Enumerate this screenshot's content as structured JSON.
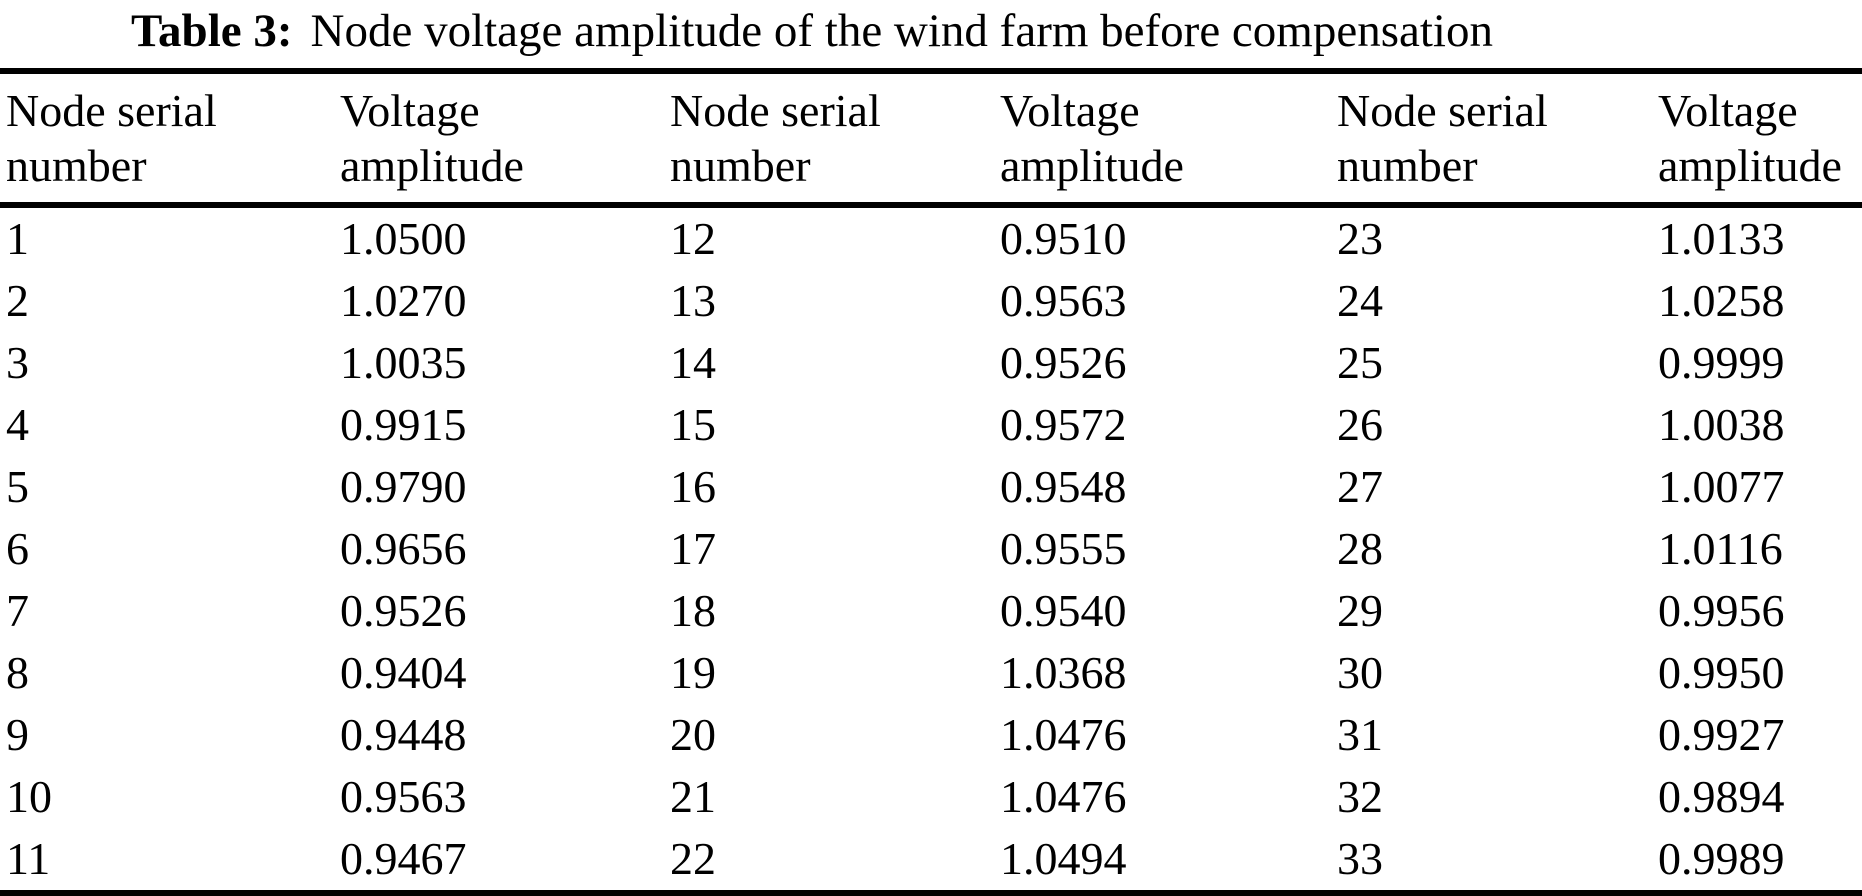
{
  "document": {
    "title": {
      "label": "Table 3:",
      "text": "Node voltage amplitude of the wind farm before compensation"
    },
    "table": {
      "column_headers": [
        {
          "line1": "Node serial",
          "line2": "number"
        },
        {
          "line1": "Voltage",
          "line2": "amplitude"
        },
        {
          "line1": "Node serial",
          "line2": "number"
        },
        {
          "line1": "Voltage",
          "line2": "amplitude"
        },
        {
          "line1": "Node serial",
          "line2": "number"
        },
        {
          "line1": "Voltage",
          "line2": "amplitude"
        }
      ],
      "rows": [
        [
          "1",
          "1.0500",
          "12",
          "0.9510",
          "23",
          "1.0133"
        ],
        [
          "2",
          "1.0270",
          "13",
          "0.9563",
          "24",
          "1.0258"
        ],
        [
          "3",
          "1.0035",
          "14",
          "0.9526",
          "25",
          "0.9999"
        ],
        [
          "4",
          "0.9915",
          "15",
          "0.9572",
          "26",
          "1.0038"
        ],
        [
          "5",
          "0.9790",
          "16",
          "0.9548",
          "27",
          "1.0077"
        ],
        [
          "6",
          "0.9656",
          "17",
          "0.9555",
          "28",
          "1.0116"
        ],
        [
          "7",
          "0.9526",
          "18",
          "0.9540",
          "29",
          "0.9956"
        ],
        [
          "8",
          "0.9404",
          "19",
          "1.0368",
          "30",
          "0.9950"
        ],
        [
          "9",
          "0.9448",
          "20",
          "1.0476",
          "31",
          "0.9927"
        ],
        [
          "10",
          "0.9563",
          "21",
          "1.0476",
          "32",
          "0.9894"
        ],
        [
          "11",
          "0.9467",
          "22",
          "1.0494",
          "33",
          "0.9989"
        ]
      ]
    }
  },
  "chart_data": {
    "type": "table",
    "title": "Table 3: Node voltage amplitude of the wind farm before compensation",
    "columns": [
      "Node serial number",
      "Voltage amplitude"
    ],
    "records": [
      [
        1,
        1.05
      ],
      [
        2,
        1.027
      ],
      [
        3,
        1.0035
      ],
      [
        4,
        0.9915
      ],
      [
        5,
        0.979
      ],
      [
        6,
        0.9656
      ],
      [
        7,
        0.9526
      ],
      [
        8,
        0.9404
      ],
      [
        9,
        0.9448
      ],
      [
        10,
        0.9563
      ],
      [
        11,
        0.9467
      ],
      [
        12,
        0.951
      ],
      [
        13,
        0.9563
      ],
      [
        14,
        0.9526
      ],
      [
        15,
        0.9572
      ],
      [
        16,
        0.9548
      ],
      [
        17,
        0.9555
      ],
      [
        18,
        0.954
      ],
      [
        19,
        1.0368
      ],
      [
        20,
        1.0476
      ],
      [
        21,
        1.0476
      ],
      [
        22,
        1.0494
      ],
      [
        23,
        1.0133
      ],
      [
        24,
        1.0258
      ],
      [
        25,
        0.9999
      ],
      [
        26,
        1.0038
      ],
      [
        27,
        1.0077
      ],
      [
        28,
        1.0116
      ],
      [
        29,
        0.9956
      ],
      [
        30,
        0.995
      ],
      [
        31,
        0.9927
      ],
      [
        32,
        0.9894
      ],
      [
        33,
        0.9989
      ]
    ]
  }
}
